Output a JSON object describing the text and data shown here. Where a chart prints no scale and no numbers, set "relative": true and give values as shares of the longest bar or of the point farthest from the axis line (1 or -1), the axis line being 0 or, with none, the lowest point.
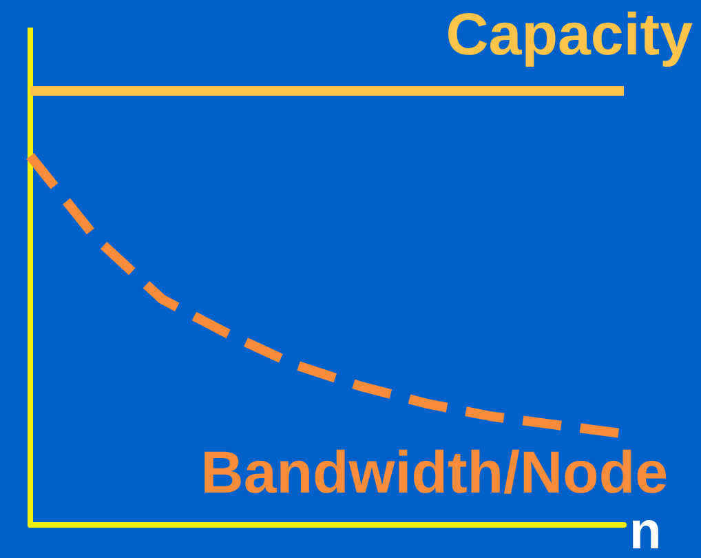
{
  "chart_data": {
    "type": "line",
    "relative": true,
    "xlabel": "n",
    "categories": [
      null,
      null,
      null,
      null,
      null,
      null,
      null,
      null,
      null,
      null
    ],
    "series": [
      {
        "name": "Capacity",
        "color": "#fcc44a",
        "values": [
          1,
          1,
          1,
          1,
          1,
          1,
          1,
          1,
          1,
          1
        ],
        "line_style": "solid"
      },
      {
        "name": "Bandwidth/Node",
        "color": "#fa8c3c",
        "values": [
          0.85,
          0.66,
          0.52,
          0.44,
          0.37,
          0.32,
          0.28,
          0.25,
          0.23,
          0.21
        ],
        "line_style": "dashed"
      }
    ],
    "legend": false,
    "grid": false,
    "marker": "none"
  }
}
